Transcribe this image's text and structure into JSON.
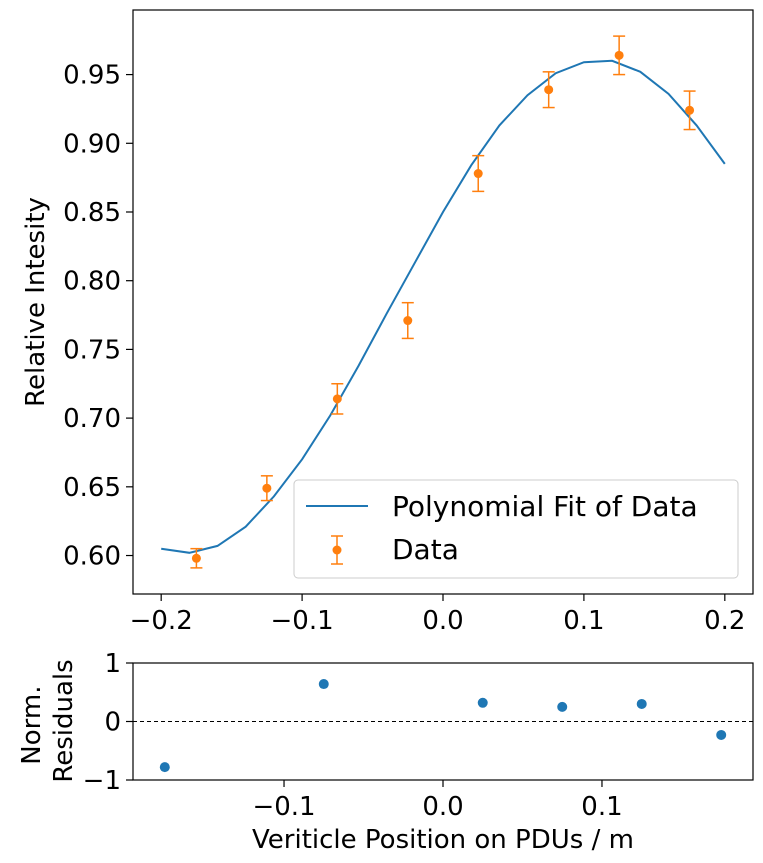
{
  "chart_data": [
    {
      "type": "line",
      "xlabel": "",
      "ylabel": "Relative Intesity",
      "xlim": [
        -0.22,
        0.22
      ],
      "ylim": [
        0.572,
        0.997
      ],
      "x_ticks": [
        "-0.2",
        "-0.1",
        "0.0",
        "0.1",
        "0.2"
      ],
      "y_ticks": [
        "0.60",
        "0.65",
        "0.70",
        "0.75",
        "0.80",
        "0.85",
        "0.90",
        "0.95"
      ],
      "legend_position": "lower right",
      "series": [
        {
          "name": "Polynomial Fit of Data",
          "kind": "line",
          "color": "#1f77b4",
          "x": [
            -0.2,
            -0.18,
            -0.16,
            -0.14,
            -0.12,
            -0.1,
            -0.08,
            -0.06,
            -0.04,
            -0.02,
            0.0,
            0.02,
            0.04,
            0.06,
            0.08,
            0.1,
            0.12,
            0.14,
            0.16,
            0.18,
            0.2
          ],
          "y": [
            0.605,
            0.602,
            0.607,
            0.621,
            0.643,
            0.67,
            0.702,
            0.738,
            0.776,
            0.813,
            0.85,
            0.884,
            0.913,
            0.935,
            0.951,
            0.959,
            0.96,
            0.952,
            0.936,
            0.913,
            0.885
          ]
        },
        {
          "name": "Data",
          "kind": "errorbar",
          "color": "#ff7f0e",
          "x": [
            -0.175,
            -0.125,
            -0.075,
            -0.025,
            0.025,
            0.075,
            0.125,
            0.175
          ],
          "y": [
            0.598,
            0.649,
            0.714,
            0.771,
            0.878,
            0.939,
            0.964,
            0.924
          ],
          "yerr": [
            0.007,
            0.009,
            0.011,
            0.013,
            0.013,
            0.013,
            0.014,
            0.014
          ]
        }
      ]
    },
    {
      "type": "scatter",
      "xlabel": "Veriticle Position on PDUs / m",
      "ylabel": "Norm.\nResiduals",
      "ylabel_lines": [
        "Norm.",
        "Residuals"
      ],
      "xlim": [
        -0.195,
        0.195
      ],
      "ylim": [
        -1,
        1
      ],
      "x_ticks": [
        "-0.1",
        "0.0",
        "0.1"
      ],
      "y_ticks": [
        "-1",
        "0",
        "1"
      ],
      "reference_line": 0,
      "series": [
        {
          "color": "#1f77b4",
          "x": [
            -0.175,
            -0.075,
            0.025,
            0.075,
            0.125,
            0.175
          ],
          "y": [
            -0.78,
            0.64,
            0.32,
            0.25,
            0.3,
            -0.23
          ]
        }
      ]
    }
  ]
}
